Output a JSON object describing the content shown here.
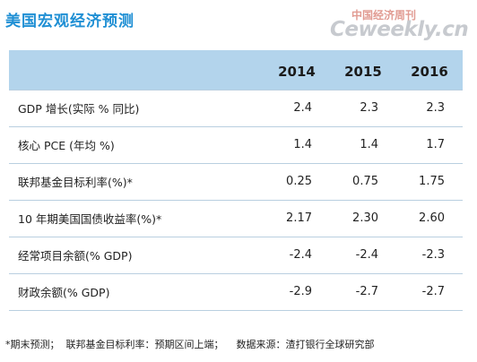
{
  "title": "美国宏观经济预测",
  "watermark": {
    "chinese": "中国经济周刊",
    "english": "Ceweekly.cn"
  },
  "table": {
    "years": [
      "2014",
      "2015",
      "2016"
    ],
    "rows": [
      {
        "label": "GDP 增长(实际 % 同比)",
        "values": [
          "2.4",
          "2.3",
          "2.3"
        ]
      },
      {
        "label": "核心 PCE (年均 %)",
        "values": [
          "1.4",
          "1.4",
          "1.7"
        ]
      },
      {
        "label": "联邦基金目标利率(%)*",
        "values": [
          "0.25",
          "0.75",
          "1.75"
        ]
      },
      {
        "label": "10 年期美国国债收益率(%)*",
        "values": [
          "2.17",
          "2.30",
          "2.60"
        ]
      },
      {
        "label": "经常项目余额(% GDP)",
        "values": [
          "-2.4",
          "-2.4",
          "-2.3"
        ]
      },
      {
        "label": "财政余额(% GDP)",
        "values": [
          "-2.9",
          "-2.7",
          "-2.7"
        ]
      }
    ]
  },
  "footnote": "*期末预测；  联邦基金目标利率：预期区间上端；    数据来源：渣打银行全球研究部"
}
